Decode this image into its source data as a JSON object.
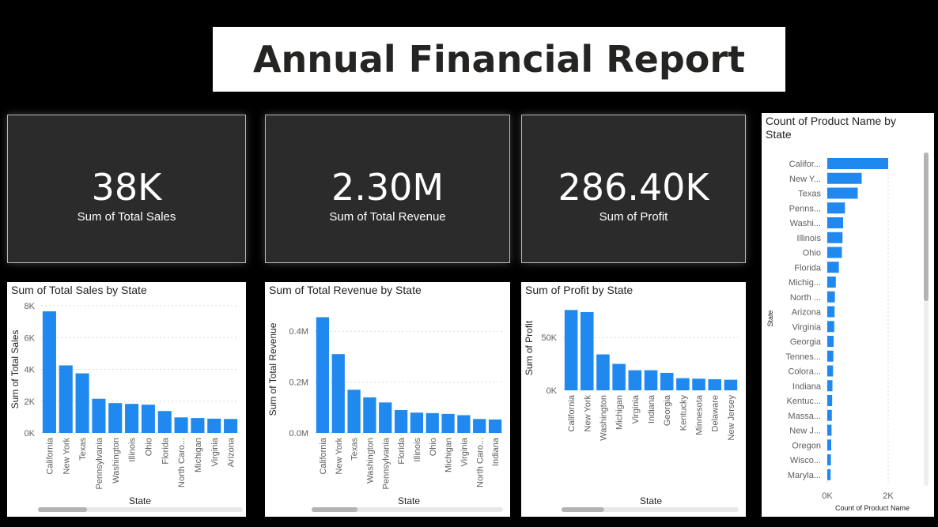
{
  "title": "Annual Financial Report",
  "cards": [
    {
      "value": "38K",
      "label": "Sum of Total Sales"
    },
    {
      "value": "2.30M",
      "label": "Sum of Total Revenue"
    },
    {
      "value": "286.40K",
      "label": "Sum of Profit"
    }
  ],
  "colors": {
    "bar": "#2089f0",
    "grid": "#dcdcdc",
    "text": "#605e5c"
  },
  "chart_data": [
    {
      "type": "bar",
      "title": "Sum of Total Sales by State",
      "xlabel": "State",
      "ylabel": "Sum of Total Sales",
      "categories": [
        "California",
        "New York",
        "Texas",
        "Pennsylvania",
        "Washington",
        "Illinois",
        "Ohio",
        "Florida",
        "North Caro...",
        "Michigan",
        "Virginia",
        "Arizona"
      ],
      "values": [
        7650,
        4250,
        3750,
        2150,
        1880,
        1830,
        1780,
        1380,
        980,
        940,
        900,
        880
      ],
      "ylim": [
        0,
        8000
      ],
      "yticks": [
        "0K",
        "2K",
        "4K",
        "6K",
        "8K"
      ],
      "ytick_values": [
        0,
        2000,
        4000,
        6000,
        8000
      ],
      "grid": true
    },
    {
      "type": "bar",
      "title": "Sum of Total Revenue by State",
      "xlabel": "State",
      "ylabel": "Sum of Total Revenue",
      "categories": [
        "California",
        "New York",
        "Texas",
        "Washington",
        "Pennsylvania",
        "Florida",
        "Illinois",
        "Ohio",
        "Michigan",
        "Virginia",
        "North Caro...",
        "Indiana"
      ],
      "values": [
        0.455,
        0.31,
        0.17,
        0.14,
        0.12,
        0.09,
        0.08,
        0.078,
        0.075,
        0.07,
        0.055,
        0.053
      ],
      "ylim": [
        0,
        0.5
      ],
      "yticks": [
        "0.0M",
        "0.2M",
        "0.4M"
      ],
      "ytick_values": [
        0,
        0.2,
        0.4
      ],
      "grid": true
    },
    {
      "type": "bar",
      "title": "Sum of Profit by State",
      "xlabel": "State",
      "ylabel": "Sum of Profit",
      "categories": [
        "California",
        "New York",
        "Washington",
        "Michigan",
        "Virginia",
        "Indiana",
        "Georgia",
        "Kentucky",
        "Minnesota",
        "Delaware",
        "New Jersey"
      ],
      "values": [
        76000,
        74000,
        34000,
        25000,
        19000,
        19000,
        16500,
        11500,
        11000,
        10500,
        10000
      ],
      "ylim": [
        0,
        80000
      ],
      "yticks": [
        "0K",
        "50K"
      ],
      "ytick_values": [
        0,
        50000
      ],
      "grid": true
    },
    {
      "type": "bar",
      "orientation": "horizontal",
      "title": "Count of Product Name by State",
      "xlabel": "Count of Product Name",
      "ylabel": "State",
      "categories": [
        "Califor...",
        "New Y...",
        "Texas",
        "Penns...",
        "Washi...",
        "Illinois",
        "Ohio",
        "Florida",
        "Michig...",
        "North ...",
        "Arizona",
        "Virginia",
        "Georgia",
        "Tennes...",
        "Colora...",
        "Indiana",
        "Kentuc...",
        "Massa...",
        "New J...",
        "Oregon",
        "Wisco...",
        "Maryla..."
      ],
      "values": [
        2000,
        1130,
        1000,
        580,
        520,
        500,
        480,
        380,
        280,
        250,
        240,
        230,
        210,
        200,
        190,
        170,
        160,
        150,
        140,
        130,
        120,
        110
      ],
      "xlim": [
        0,
        2000
      ],
      "xticks": [
        "0K",
        "2K"
      ],
      "xtick_values": [
        0,
        2000
      ],
      "grid": true
    }
  ]
}
